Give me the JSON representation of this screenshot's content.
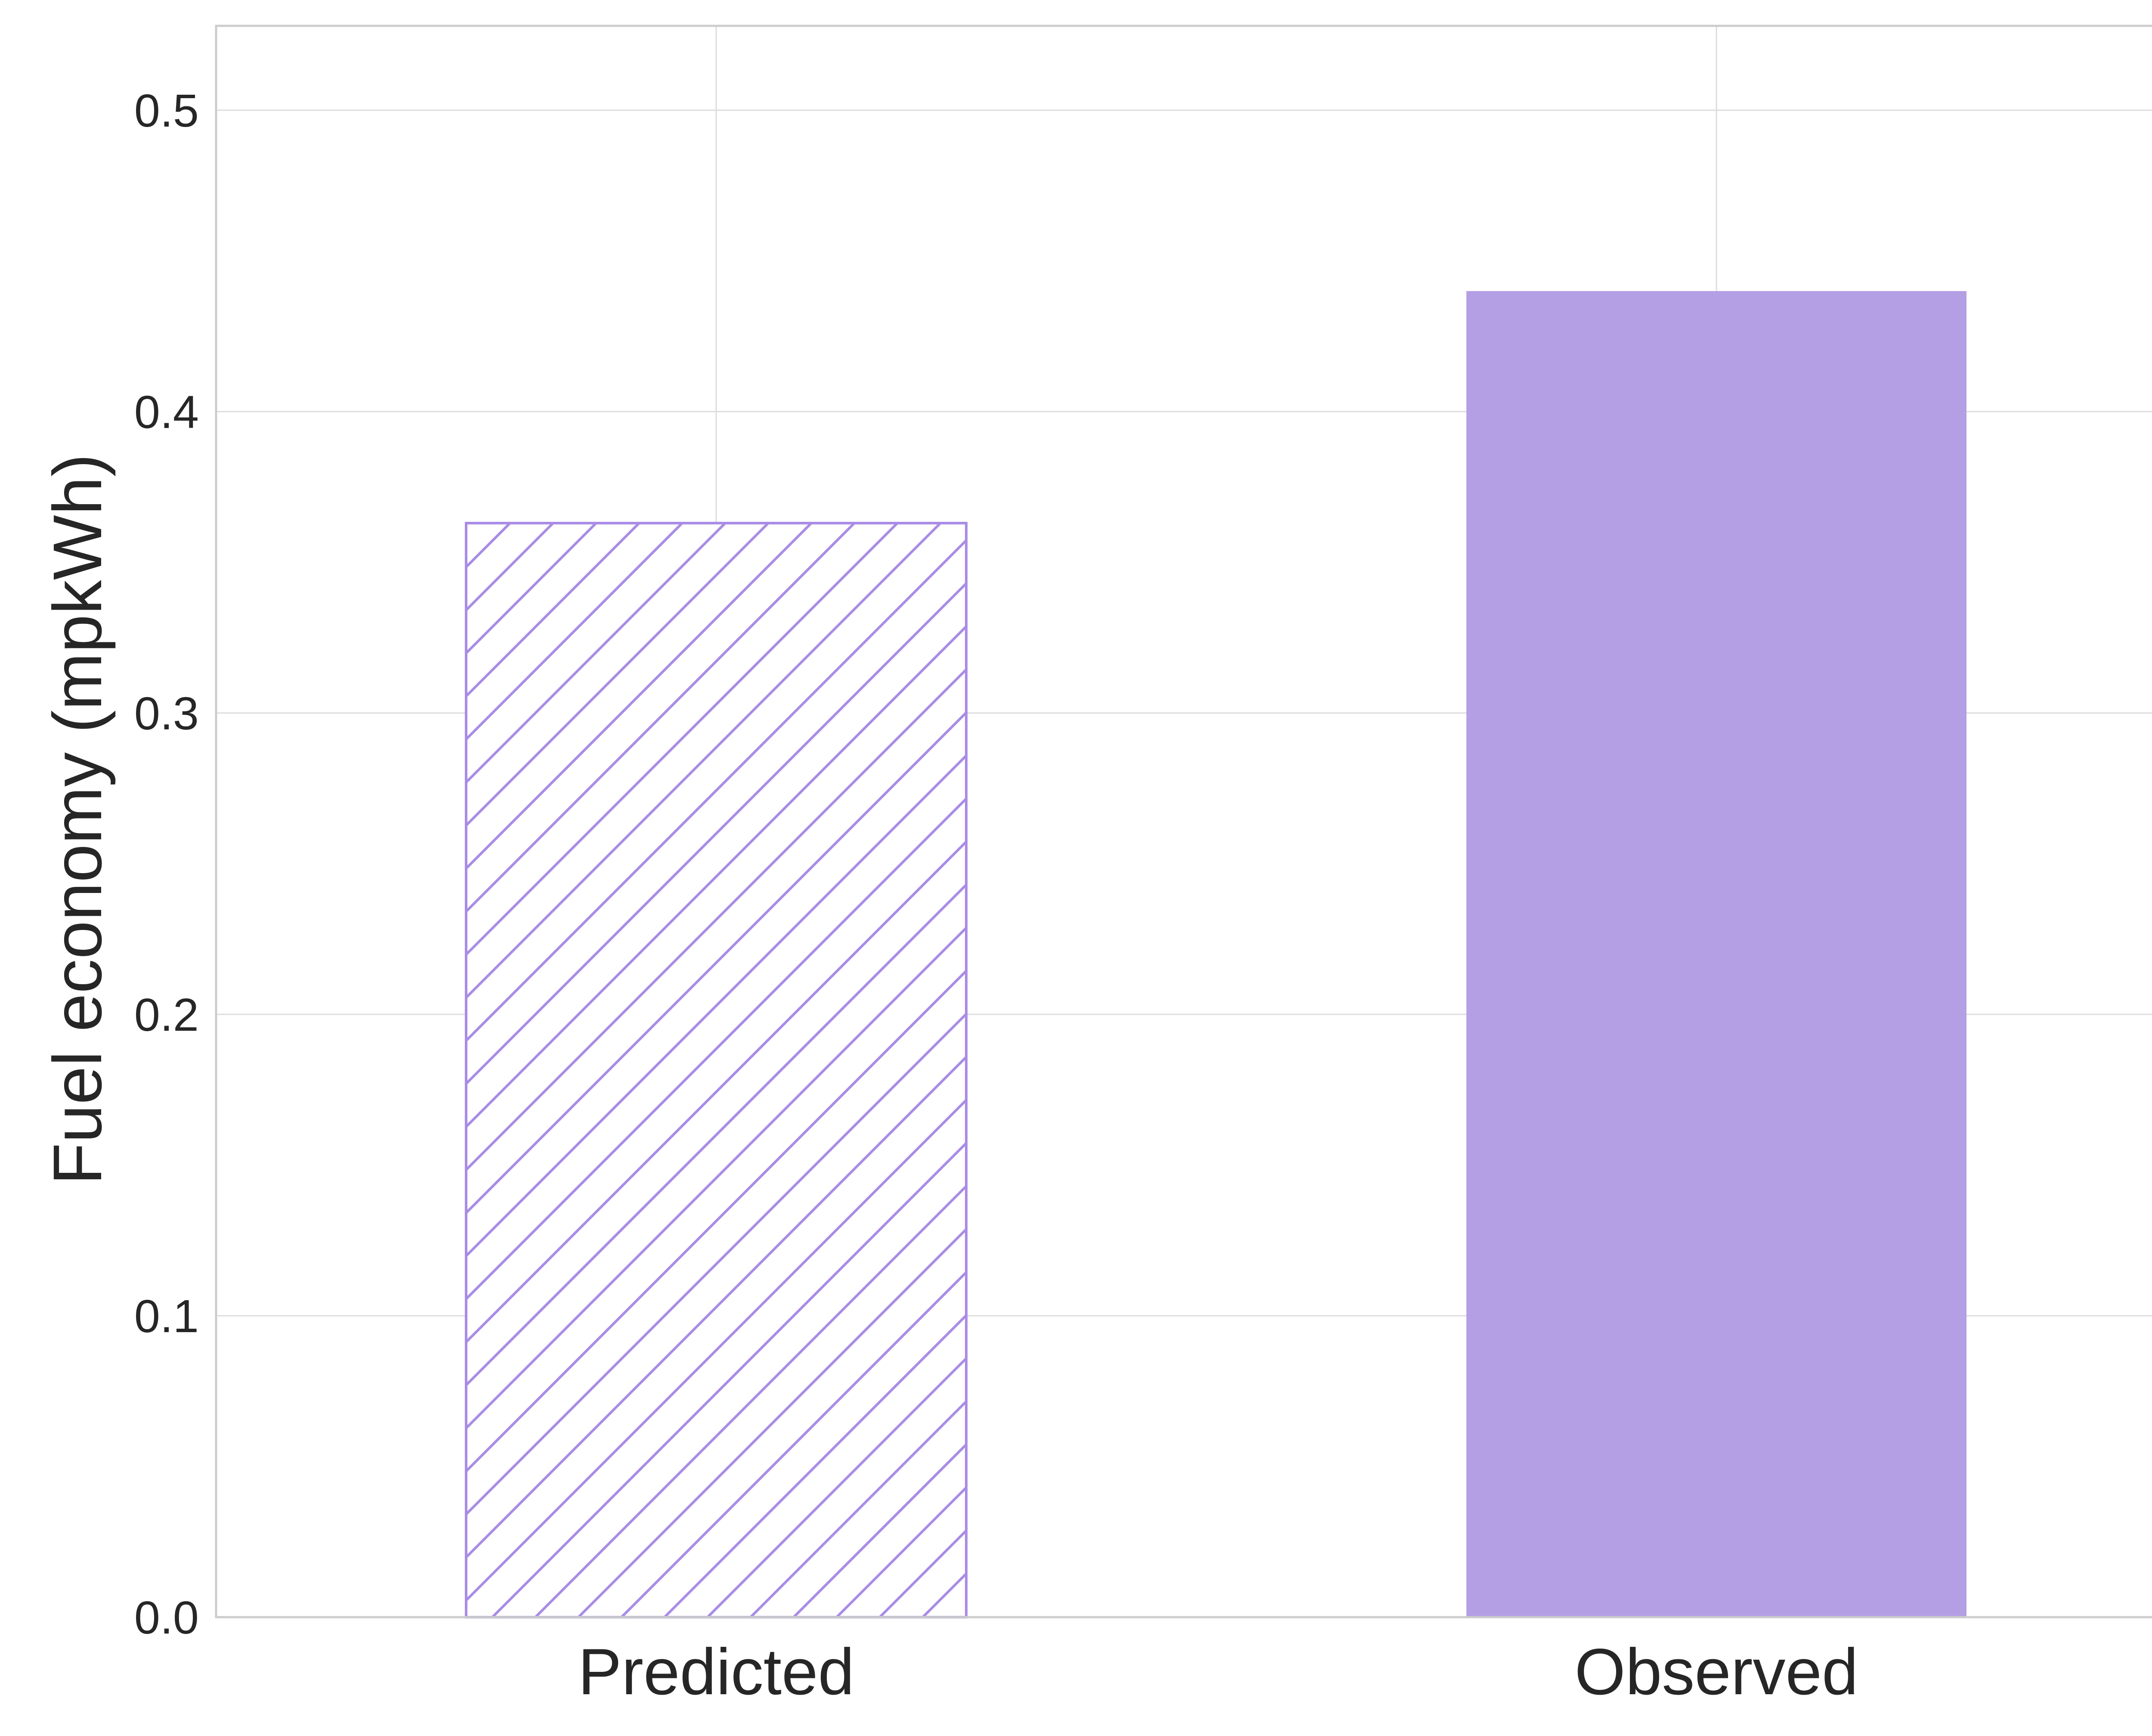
{
  "chart_data": {
    "type": "bar",
    "categories": [
      "Predicted",
      "Observed"
    ],
    "values": [
      0.363,
      0.44
    ],
    "bar_styles": [
      "hatched",
      "solid"
    ],
    "title": "",
    "xlabel": "",
    "ylabel": "Fuel economy (mpkWh)",
    "ylim": [
      0,
      0.528
    ],
    "yticks": [
      0.0,
      0.1,
      0.2,
      0.3,
      0.4,
      0.5
    ],
    "ytick_labels": [
      "0.0",
      "0.1",
      "0.2",
      "0.3",
      "0.4",
      "0.5"
    ],
    "grid": true,
    "legend": false,
    "colors": {
      "bar": "#b19ae3",
      "hatch": "#a98ce6",
      "grid": "#dcdcdc",
      "spine": "#cccccc",
      "text": "#262626"
    }
  }
}
